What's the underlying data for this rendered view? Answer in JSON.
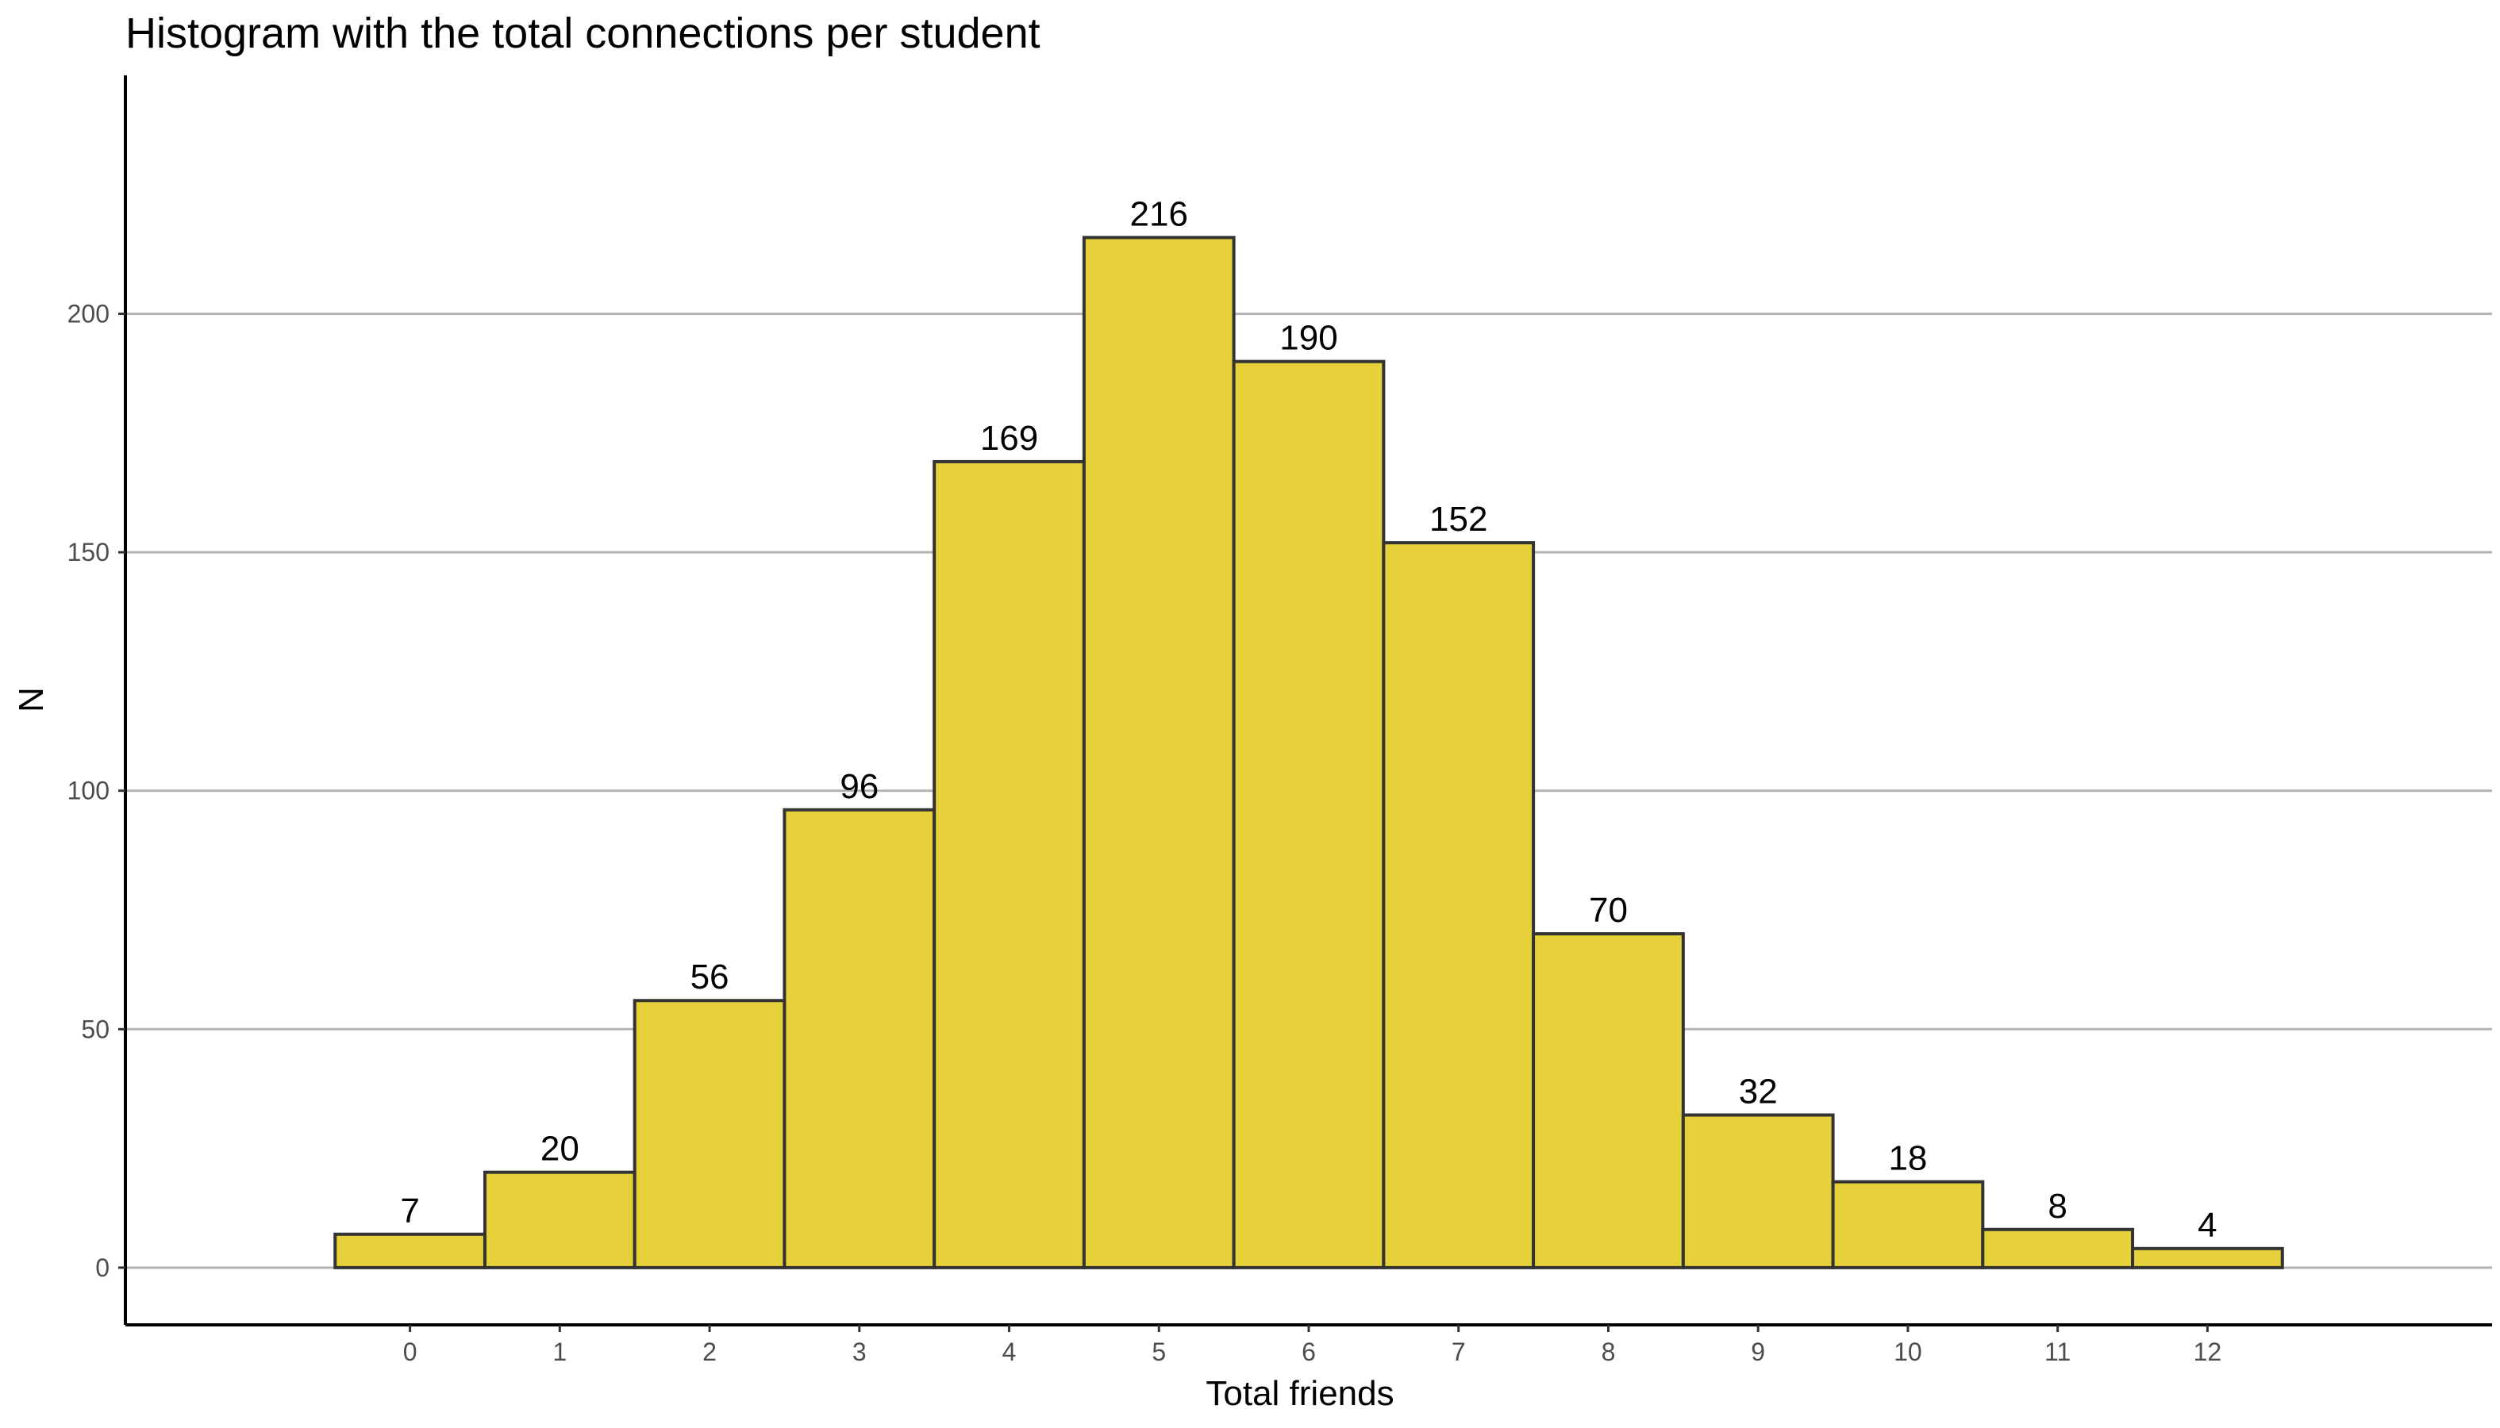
{
  "chart_data": {
    "type": "bar",
    "title": "Histogram with the total connections per student",
    "xlabel": "Total friends",
    "ylabel": "N",
    "categories": [
      "0",
      "1",
      "2",
      "3",
      "4",
      "5",
      "6",
      "7",
      "8",
      "9",
      "10",
      "11",
      "12"
    ],
    "values": [
      7,
      20,
      56,
      96,
      169,
      216,
      190,
      152,
      70,
      32,
      18,
      8,
      4
    ],
    "data_labels": [
      "7",
      "20",
      "56",
      "96",
      "169",
      "216",
      "190",
      "152",
      "70",
      "32",
      "18",
      "8",
      "4"
    ],
    "xlim": [
      -1.9,
      13.9
    ],
    "ylim": [
      -12,
      250
    ],
    "yticks": [
      0,
      50,
      100,
      150,
      200
    ],
    "ytick_labels": [
      "0",
      "50",
      "100",
      "150",
      "200"
    ],
    "grid": "horizontal major",
    "legend": "none",
    "colors": {
      "bar_fill": "#e6d13a",
      "bar_stroke": "#333333",
      "grid": "#b3b3b3",
      "axis": "#000000",
      "tick_text": "#4d4d4d",
      "background": "#ffffff"
    }
  }
}
